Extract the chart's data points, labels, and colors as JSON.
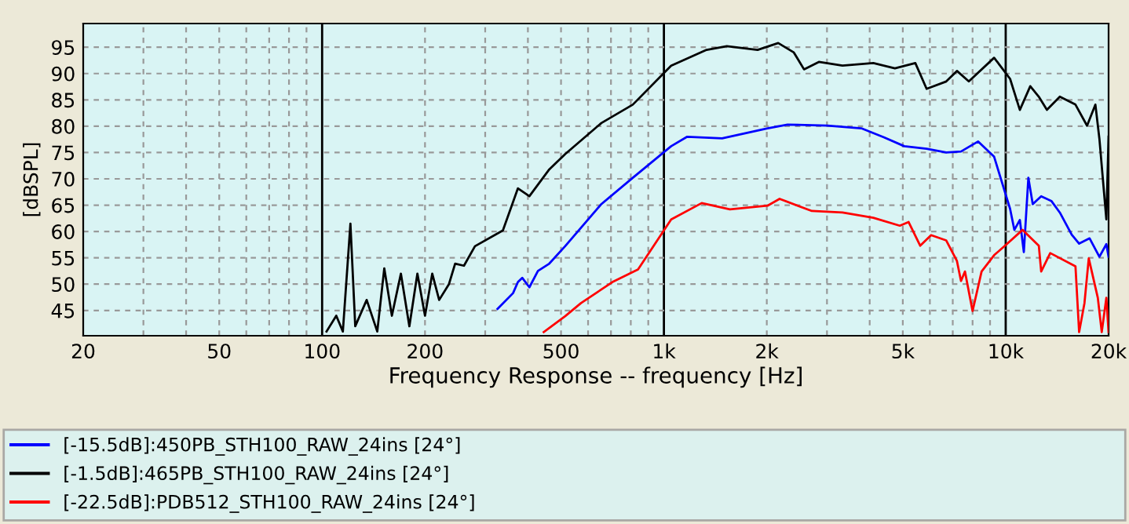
{
  "chart_data": {
    "type": "line",
    "xlabel": "Frequency Response -- frequency [Hz]",
    "ylabel": "[dBSPL]",
    "log": "x",
    "grid": true,
    "legend": "bottom",
    "line_style": "solid",
    "marker": "none",
    "xlim": [
      20,
      20000
    ],
    "ylim": [
      40.2,
      99.5
    ],
    "xticks": [
      20,
      50,
      100,
      200,
      500,
      {
        "value": 1000,
        "label": "1k"
      },
      {
        "value": 2000,
        "label": "2k"
      },
      {
        "value": 5000,
        "label": "5k"
      },
      {
        "value": 10000,
        "label": "10k"
      },
      {
        "value": 20000,
        "label": "20k"
      }
    ],
    "yticks": [
      45,
      50,
      55,
      60,
      65,
      70,
      75,
      80,
      85,
      90,
      95
    ],
    "series": [
      {
        "name": "[-15.5dB]:450PB_STH100_RAW_24ins [24°]",
        "color": "#0000ff",
        "x": [
          326,
          362,
          374,
          385,
          404,
          428,
          462,
          514,
          656,
          811,
          1050,
          1170,
          1480,
          2010,
          2300,
          3010,
          3780,
          4400,
          5050,
          5870,
          6700,
          7400,
          8300,
          9250,
          10300,
          10600,
          11000,
          11300,
          11650,
          12000,
          12700,
          13600,
          14400,
          15600,
          16400,
          17600,
          18800,
          19700,
          20000
        ],
        "values": [
          45.3,
          48.3,
          50.4,
          51.2,
          49.4,
          52.5,
          53.9,
          57.2,
          65.2,
          70.2,
          76.2,
          78,
          77.7,
          79.6,
          80.3,
          80.1,
          79.6,
          77.9,
          76.2,
          75.7,
          75,
          75.2,
          77.1,
          74.2,
          64.3,
          60.3,
          62.2,
          56.1,
          70.2,
          65.2,
          66.7,
          65.8,
          63.6,
          59.4,
          57.7,
          58.7,
          55.2,
          57.6,
          55.2
        ]
      },
      {
        "name": "[-1.5dB]:465PB_STH100_RAW_24ins [24°]",
        "color": "#000000",
        "x": [
          103,
          110,
          115,
          121,
          125,
          135,
          145,
          152,
          160,
          170,
          180,
          190,
          200,
          210,
          220,
          235,
          245,
          260,
          280,
          338,
          374,
          404,
          462,
          514,
          656,
          811,
          1050,
          1333,
          1528,
          1880,
          2160,
          2400,
          2570,
          2840,
          3330,
          4100,
          4740,
          5440,
          5870,
          6700,
          7200,
          7800,
          9250,
          10300,
          11000,
          11800,
          12500,
          13200,
          14400,
          16000,
          17300,
          18300,
          18800,
          19700,
          20000
        ],
        "values": [
          41,
          44,
          41,
          61.5,
          42,
          47,
          41,
          53,
          44,
          52,
          42,
          52,
          44,
          52,
          47,
          50,
          53.9,
          53.5,
          57.2,
          60.2,
          68.2,
          66.7,
          71.8,
          74.7,
          80.6,
          84.1,
          91.5,
          94.5,
          95.2,
          94.5,
          95.8,
          94,
          90.8,
          92.2,
          91.5,
          92,
          91,
          92,
          87.1,
          88.5,
          90.5,
          88.5,
          93,
          89,
          83.1,
          87.6,
          85.6,
          83.1,
          85.6,
          84.1,
          80.1,
          84.1,
          77.6,
          62.3,
          78
        ]
      },
      {
        "name": "[-22.5dB]:PDB512_STH100_RAW_24ins [24°]",
        "color": "#ff0000",
        "x": [
          445,
          514,
          572,
          707,
          840,
          1050,
          1290,
          1560,
          2010,
          2180,
          2710,
          3330,
          4100,
          4900,
          5200,
          5620,
          6050,
          6700,
          7200,
          7400,
          7600,
          8000,
          8500,
          9250,
          9950,
          11200,
          12500,
          12700,
          13500,
          16000,
          16400,
          17000,
          17500,
          18600,
          19100,
          19700,
          20000
        ],
        "values": [
          40.9,
          43.9,
          46.4,
          50.4,
          52.8,
          62.3,
          65.4,
          64.2,
          64.9,
          66.2,
          63.9,
          63.6,
          62.6,
          61.1,
          61.8,
          57.3,
          59.3,
          58.3,
          54.4,
          50.6,
          52.4,
          44.9,
          52.4,
          55.5,
          57.3,
          60.3,
          57.3,
          52.4,
          55.9,
          53.4,
          40.9,
          46.4,
          54.9,
          47.4,
          40.9,
          47.4,
          40.9
        ]
      }
    ]
  }
}
